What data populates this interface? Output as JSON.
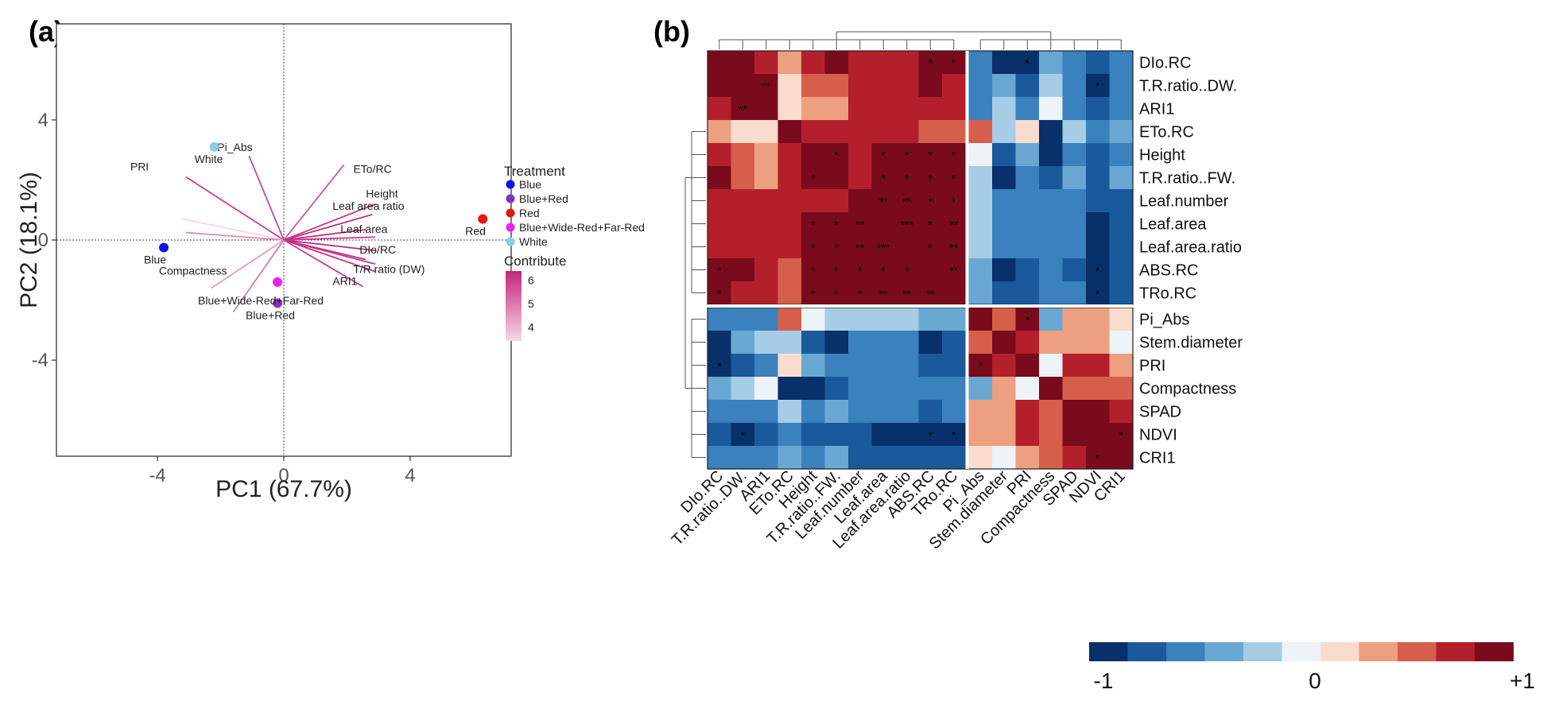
{
  "panels": {
    "a_label": "(a)",
    "b_label": "(b)"
  },
  "chart_data": [
    {
      "type": "scatter",
      "subtype": "pca-biplot",
      "xlabel": "PC1 (67.7%)",
      "ylabel": "PC2 (18.1%)",
      "xlim": [
        -7.2,
        7.2
      ],
      "ylim": [
        -7.2,
        7.2
      ],
      "xticks": [
        -4,
        0,
        4
      ],
      "yticks": [
        -4,
        0,
        4
      ],
      "tick_labels": {
        "x": [
          "-4",
          "0",
          "4"
        ],
        "y": [
          "-4",
          "0",
          "4"
        ]
      },
      "grid": false,
      "legend_position": "right",
      "legend_title": "Treatment",
      "series": [
        {
          "name": "Blue",
          "x": -3.8,
          "y": -0.25,
          "label": "Blue",
          "color": "#1010e8"
        },
        {
          "name": "Blue+Red",
          "x": -0.2,
          "y": -2.1,
          "label": "Blue+Red",
          "color": "#8a2fc0"
        },
        {
          "name": "Red",
          "x": 6.3,
          "y": 0.7,
          "label": "Red",
          "color": "#e8160c"
        },
        {
          "name": "Blue+Wide-Red+Far-Red",
          "x": -0.2,
          "y": -1.4,
          "label": "Blue+Wide-Red+Far-Red",
          "color": "#f01ef0"
        },
        {
          "name": "White",
          "x": -2.2,
          "y": 3.1,
          "label": "White",
          "color": "#8ecbe8"
        }
      ],
      "variables": [
        {
          "name": "Pi_Abs",
          "x": -1.1,
          "y": 2.8,
          "contribution": 5.8,
          "label": "Pi_Abs"
        },
        {
          "name": "PRI",
          "x": -3.1,
          "y": 2.1,
          "contribution": 6.0,
          "label": "PRI"
        },
        {
          "name": "Compactness",
          "x": -3.2,
          "y": 0.7,
          "contribution": 3.4,
          "label": "Compactness"
        },
        {
          "name": "Stem.diameter",
          "x": -2.3,
          "y": -1.6,
          "contribution": 4.4,
          "label": ""
        },
        {
          "name": "SPAD",
          "x": -3.1,
          "y": 0.25,
          "contribution": 4.7,
          "label": ""
        },
        {
          "name": "ETo/RC",
          "x": 1.9,
          "y": 2.5,
          "contribution": 5.6,
          "label": "ETo/RC"
        },
        {
          "name": "Height",
          "x": 2.9,
          "y": 1.2,
          "contribution": 6.2,
          "label": "Height"
        },
        {
          "name": "Leaf area ratio",
          "x": 2.8,
          "y": 0.85,
          "contribution": 6.3,
          "label": "Leaf area ratio"
        },
        {
          "name": "Leaf.area",
          "x": 2.6,
          "y": 0.35,
          "contribution": 6.3,
          "label": "Leaf.area"
        },
        {
          "name": "DIo/RC",
          "x": 2.9,
          "y": -0.35,
          "contribution": 6.4,
          "label": "DIo/RC"
        },
        {
          "name": "T/R ratio (DW)",
          "x": 2.9,
          "y": -1.05,
          "contribution": 6.2,
          "label": "T/R ratio (DW)"
        },
        {
          "name": "ARI1",
          "x": 2.5,
          "y": -1.55,
          "contribution": 6.0,
          "label": "ARI1"
        },
        {
          "name": "ABS.RC",
          "x": 2.9,
          "y": -0.8,
          "contribution": 6.1,
          "label": ""
        },
        {
          "name": "TRo.RC",
          "x": 2.6,
          "y": -0.65,
          "contribution": 6.2,
          "label": ""
        },
        {
          "name": "Leaf.number",
          "x": 2.9,
          "y": 0.1,
          "contribution": 6.1,
          "label": ""
        },
        {
          "name": "NDVI",
          "x": -1.6,
          "y": -2.4,
          "contribution": 5.0,
          "label": ""
        }
      ],
      "contribute_legend": {
        "title": "Contribute",
        "ticks": [
          "6",
          "5",
          "4"
        ],
        "min": 3.4,
        "max": 6.4
      }
    },
    {
      "type": "heatmap",
      "row_labels": [
        "DIo.RC",
        "T.R.ratio..DW.",
        "ARI1",
        "ETo.RC",
        "Height",
        "T.R.ratio..FW.",
        "Leaf.number",
        "Leaf.area",
        "Leaf.area.ratio",
        "ABS.RC",
        "TRo.RC",
        "Pi_Abs",
        "Stem.diameter",
        "PRI",
        "Compactness",
        "SPAD",
        "NDVI",
        "CRI1"
      ],
      "col_labels": [
        "DIo.RC",
        "T.R.ratio..DW.",
        "ARI1",
        "ETo.RC",
        "Height",
        "T.R.ratio..FW.",
        "Leaf.number",
        "Leaf.area",
        "Leaf.area.ratio",
        "ABS.RC",
        "TRo.RC",
        "Pi_Abs",
        "Stem.diameter",
        "PRI",
        "Compactness",
        "SPAD",
        "NDVI",
        "CRI1"
      ],
      "values": [
        [
          1.0,
          0.9,
          0.85,
          0.35,
          0.8,
          0.9,
          0.85,
          0.82,
          0.88,
          0.95,
          0.92,
          -0.65,
          -0.9,
          -0.95,
          -0.35,
          -0.65,
          -0.85,
          -0.6
        ],
        [
          0.9,
          1.0,
          1.0,
          0.2,
          0.55,
          0.55,
          0.85,
          0.85,
          0.75,
          0.9,
          0.85,
          -0.65,
          -0.45,
          -0.75,
          -0.2,
          -0.7,
          -0.95,
          -0.65
        ],
        [
          0.85,
          1.0,
          1.0,
          0.1,
          0.4,
          0.4,
          0.75,
          0.7,
          0.7,
          0.75,
          0.75,
          -0.65,
          -0.25,
          -0.7,
          -0.1,
          -0.6,
          -0.85,
          -0.7
        ],
        [
          0.35,
          0.2,
          0.1,
          1.0,
          0.85,
          0.7,
          0.75,
          0.75,
          0.75,
          0.55,
          0.65,
          0.55,
          -0.3,
          0.2,
          -0.9,
          -0.2,
          -0.55,
          -0.45
        ],
        [
          0.8,
          0.55,
          0.4,
          0.85,
          1.0,
          1.0,
          0.85,
          1.0,
          1.0,
          1.0,
          1.0,
          -0.05,
          -0.85,
          -0.45,
          -0.9,
          -0.65,
          -0.75,
          -0.6
        ],
        [
          0.9,
          0.55,
          0.4,
          0.7,
          1.0,
          1.0,
          0.85,
          1.0,
          1.0,
          1.0,
          1.0,
          -0.25,
          -0.95,
          -0.65,
          -0.85,
          -0.45,
          -0.75,
          -0.4
        ],
        [
          0.85,
          0.85,
          0.75,
          0.75,
          0.85,
          0.85,
          1.0,
          1.0,
          1.0,
          0.95,
          1.0,
          -0.15,
          -0.6,
          -0.6,
          -0.6,
          -0.65,
          -0.85,
          -0.8
        ],
        [
          0.82,
          0.85,
          0.7,
          0.75,
          1.0,
          1.0,
          1.0,
          1.0,
          1.0,
          1.0,
          1.0,
          -0.15,
          -0.7,
          -0.6,
          -0.7,
          -0.7,
          -0.9,
          -0.8
        ],
        [
          0.88,
          0.75,
          0.7,
          0.75,
          1.0,
          1.0,
          1.0,
          1.0,
          1.0,
          1.0,
          1.0,
          -0.15,
          -0.7,
          -0.6,
          -0.7,
          -0.7,
          -0.9,
          -0.8
        ],
        [
          0.95,
          0.9,
          0.75,
          0.55,
          1.0,
          1.0,
          0.95,
          1.0,
          1.0,
          1.0,
          1.0,
          -0.45,
          -0.9,
          -0.85,
          -0.55,
          -0.75,
          -0.95,
          -0.8
        ],
        [
          0.92,
          0.85,
          0.75,
          0.65,
          1.0,
          1.0,
          1.0,
          1.0,
          1.0,
          1.0,
          1.0,
          -0.35,
          -0.8,
          -0.8,
          -0.7,
          -0.7,
          -0.95,
          -0.8
        ],
        [
          -0.65,
          -0.65,
          -0.65,
          0.55,
          -0.05,
          -0.25,
          -0.15,
          -0.15,
          -0.15,
          -0.45,
          -0.35,
          1.0,
          0.55,
          0.95,
          -0.35,
          0.45,
          0.4,
          0.1
        ],
        [
          -0.9,
          -0.45,
          -0.25,
          -0.3,
          -0.85,
          -0.95,
          -0.6,
          -0.7,
          -0.7,
          -0.9,
          -0.8,
          0.55,
          1.0,
          0.8,
          0.4,
          0.4,
          0.45,
          0.05
        ],
        [
          -0.95,
          -0.75,
          -0.7,
          0.2,
          -0.45,
          -0.65,
          -0.6,
          -0.6,
          -0.6,
          -0.85,
          -0.8,
          0.95,
          0.8,
          1.0,
          0.0,
          0.75,
          0.75,
          0.4
        ],
        [
          -0.35,
          -0.2,
          -0.1,
          -0.9,
          -0.9,
          -0.85,
          -0.6,
          -0.7,
          -0.7,
          -0.55,
          -0.7,
          -0.35,
          0.4,
          0.0,
          1.0,
          0.65,
          0.6,
          0.5
        ],
        [
          -0.65,
          -0.7,
          -0.6,
          -0.2,
          -0.65,
          -0.45,
          -0.65,
          -0.7,
          -0.7,
          -0.75,
          -0.7,
          0.45,
          0.4,
          0.75,
          0.65,
          1.0,
          0.9,
          0.8
        ],
        [
          -0.85,
          -0.95,
          -0.85,
          -0.55,
          -0.75,
          -0.75,
          -0.85,
          -0.9,
          -0.9,
          -0.95,
          -0.95,
          0.4,
          0.45,
          0.75,
          0.6,
          0.9,
          1.0,
          0.95
        ],
        [
          -0.6,
          -0.65,
          -0.7,
          -0.45,
          -0.6,
          -0.4,
          -0.8,
          -0.8,
          -0.8,
          -0.8,
          -0.8,
          0.1,
          0.05,
          0.4,
          0.5,
          0.8,
          0.95,
          1.0
        ]
      ],
      "significance": [
        [
          "",
          "",
          "",
          "",
          "",
          "",
          "",
          "",
          "",
          "*",
          "*",
          "",
          "",
          "*",
          "",
          "",
          "",
          ""
        ],
        [
          "",
          "",
          "**",
          "",
          "",
          "",
          "",
          "",
          "",
          "",
          "",
          "",
          "",
          "",
          "",
          "",
          "*",
          ""
        ],
        [
          "",
          "**",
          "",
          "",
          "",
          "",
          "",
          "",
          "",
          "",
          "",
          "",
          "",
          "",
          "",
          "",
          "",
          ""
        ],
        [
          "",
          "",
          "",
          "",
          "",
          "",
          "",
          "",
          "",
          "",
          "",
          "",
          "",
          "",
          "",
          "",
          "",
          ""
        ],
        [
          "",
          "",
          "",
          "",
          "",
          "*",
          "",
          "*",
          "*",
          "*",
          "*",
          "",
          "",
          "",
          "",
          "",
          "",
          ""
        ],
        [
          "",
          "",
          "",
          "",
          "*",
          "",
          "",
          "*",
          "*",
          "*",
          "*",
          "",
          "",
          "",
          "",
          "",
          "",
          ""
        ],
        [
          "",
          "",
          "",
          "",
          "",
          "",
          "",
          "**",
          "**",
          "*",
          "*",
          "",
          "",
          "",
          "",
          "",
          "",
          ""
        ],
        [
          "",
          "",
          "",
          "",
          "*",
          "*",
          "**",
          "",
          "***",
          "*",
          "**",
          "",
          "",
          "",
          "",
          "",
          "",
          ""
        ],
        [
          "",
          "",
          "",
          "",
          "*",
          "*",
          "**",
          "***",
          "",
          "*",
          "**",
          "",
          "",
          "",
          "",
          "",
          "",
          ""
        ],
        [
          "*",
          "",
          "",
          "",
          "*",
          "*",
          "*",
          "*",
          "*",
          "",
          "**",
          "",
          "",
          "",
          "",
          "",
          "*",
          ""
        ],
        [
          "*",
          "",
          "",
          "",
          "*",
          "*",
          "*",
          "**",
          "**",
          "**",
          "",
          "",
          "",
          "",
          "",
          "",
          "*",
          ""
        ],
        [
          "",
          "",
          "",
          "",
          "",
          "",
          "",
          "",
          "",
          "",
          "",
          "",
          "",
          "*",
          "",
          "",
          "",
          ""
        ],
        [
          "",
          "",
          "",
          "",
          "",
          "",
          "",
          "",
          "",
          "",
          "",
          "",
          "",
          "",
          "",
          "",
          "",
          ""
        ],
        [
          "*",
          "",
          "",
          "",
          "",
          "",
          "",
          "",
          "",
          "",
          "",
          "*",
          "",
          "",
          "",
          "",
          "",
          ""
        ],
        [
          "",
          "",
          "",
          "",
          "",
          "",
          "",
          "",
          "",
          "",
          "",
          "",
          "",
          "",
          "",
          "",
          "",
          ""
        ],
        [
          "",
          "",
          "",
          "",
          "",
          "",
          "",
          "",
          "",
          "",
          "",
          "",
          "",
          "",
          "",
          "",
          "",
          ""
        ],
        [
          "",
          "*",
          "",
          "",
          "",
          "",
          "",
          "",
          "",
          "*",
          "*",
          "",
          "",
          "",
          "",
          "",
          "",
          "*"
        ],
        [
          "",
          "",
          "",
          "",
          "",
          "",
          "",
          "",
          "",
          "",
          "",
          "",
          "",
          "",
          "",
          "",
          "*",
          ""
        ]
      ],
      "color_scale": {
        "min_label": "-1",
        "mid_label": "0",
        "max_label": "+1",
        "range": [
          -1,
          1
        ],
        "colors": [
          "#08306b",
          "#1a5a9c",
          "#3a81bd",
          "#6aa8d4",
          "#a6cde5",
          "#eef3f8",
          "#f9dccd",
          "#eda080",
          "#d65f4b",
          "#b3202c",
          "#7a0b1d"
        ]
      },
      "row_clusters": [
        11,
        7
      ],
      "col_clusters": [
        11,
        7
      ]
    }
  ]
}
